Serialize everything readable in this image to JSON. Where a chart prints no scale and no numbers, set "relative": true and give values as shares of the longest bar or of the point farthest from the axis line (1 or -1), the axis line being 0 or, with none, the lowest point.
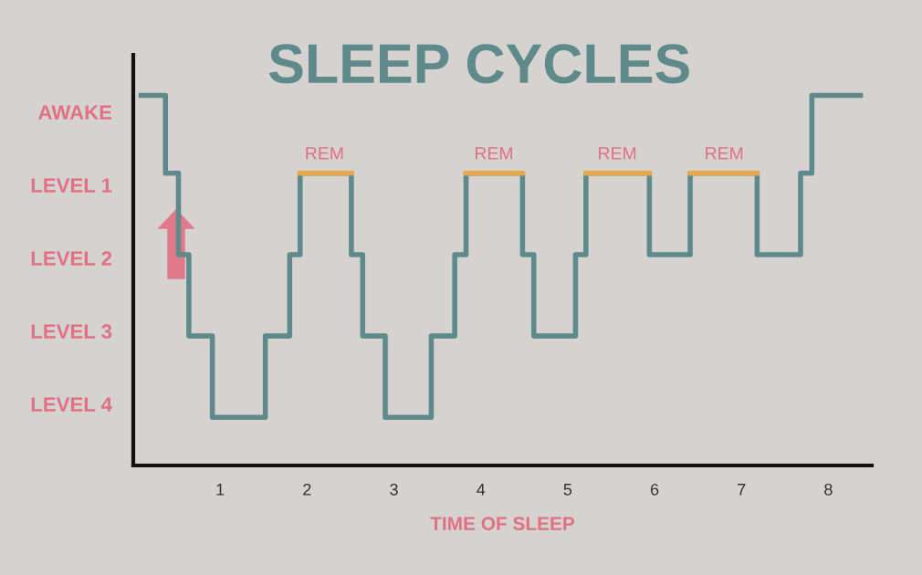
{
  "chart_data": {
    "type": "step",
    "title": "SLEEP CYCLES",
    "xlabel": "TIME OF SLEEP",
    "relative": true,
    "xlim": [
      0,
      8.5
    ],
    "xticks": [
      1,
      2,
      3,
      4,
      5,
      6,
      7,
      8
    ],
    "grid": false,
    "legend": false,
    "series": [
      {
        "color": "#5f8a8b",
        "x": [
          0.09,
          0.37,
          0.52,
          0.64,
          0.91,
          1.52,
          1.8,
          1.92,
          2.51,
          2.64,
          2.9,
          3.43,
          3.7,
          3.83,
          4.48,
          4.61,
          5.09,
          5.21,
          5.94,
          6.41,
          7.18,
          7.68,
          7.81,
          8.37
        ],
        "values": [
          1,
          0.79,
          0.57,
          0.35,
          0.13,
          0.35,
          0.57,
          0.79,
          0.57,
          0.35,
          0.13,
          0.35,
          0.57,
          0.79,
          0.57,
          0.35,
          0.57,
          0.79,
          0.57,
          0.79,
          0.57,
          0.79,
          1,
          1
        ]
      },
      {
        "type": "line",
        "color": "#e8a94a",
        "x": [
          1.92,
          2.51
        ],
        "values": [
          0.79,
          0.79
        ]
      },
      {
        "type": "line",
        "color": "#e8a94a",
        "x": [
          3.83,
          4.48
        ],
        "values": [
          0.79,
          0.79
        ]
      },
      {
        "type": "line",
        "color": "#e8a94a",
        "x": [
          5.21,
          5.94
        ],
        "values": [
          0.79,
          0.79
        ]
      },
      {
        "type": "line",
        "color": "#e8a94a",
        "x": [
          6.41,
          7.18
        ],
        "values": [
          0.79,
          0.79
        ]
      }
    ],
    "annotations": [
      "AWAKE",
      "LEVEL 1",
      "LEVEL 2",
      "LEVEL 3",
      "LEVEL 4",
      {
        "text": "REM",
        "x": 2.2,
        "y": 0.79
      },
      {
        "text": "REM",
        "x": 4.15,
        "y": 0.79
      },
      {
        "text": "REM",
        "x": 5.57,
        "y": 0.79
      },
      {
        "text": "REM",
        "x": 6.8,
        "y": 0.79
      }
    ]
  }
}
